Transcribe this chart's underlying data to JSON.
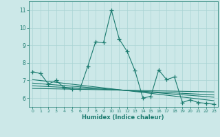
{
  "xlabel": "Humidex (Indice chaleur)",
  "bg_color": "#cce8e8",
  "line_color": "#1a7a6e",
  "xlim": [
    -0.5,
    23.5
  ],
  "ylim": [
    5.5,
    11.5
  ],
  "yticks": [
    6,
    7,
    8,
    9,
    10,
    11
  ],
  "xticks": [
    0,
    1,
    2,
    3,
    4,
    5,
    6,
    7,
    8,
    9,
    10,
    11,
    12,
    13,
    14,
    15,
    16,
    17,
    18,
    19,
    20,
    21,
    22,
    23
  ],
  "main_line_x": [
    0,
    1,
    2,
    3,
    4,
    5,
    6,
    7,
    8,
    9,
    10,
    11,
    12,
    13,
    14,
    15,
    16,
    17,
    18,
    19,
    20,
    21,
    22,
    23
  ],
  "main_line_y": [
    7.5,
    7.4,
    6.8,
    7.0,
    6.6,
    6.5,
    6.5,
    7.8,
    9.2,
    9.15,
    11.0,
    9.35,
    8.65,
    7.55,
    6.0,
    6.1,
    7.6,
    7.05,
    7.2,
    5.75,
    5.9,
    5.75,
    5.7,
    5.65
  ],
  "reg_lines": [
    {
      "x": [
        0,
        23
      ],
      "y": [
        7.05,
        5.85
      ]
    },
    {
      "x": [
        0,
        23
      ],
      "y": [
        6.85,
        6.05
      ]
    },
    {
      "x": [
        0,
        23
      ],
      "y": [
        6.7,
        6.18
      ]
    },
    {
      "x": [
        0,
        23
      ],
      "y": [
        6.55,
        6.35
      ]
    }
  ],
  "grid_color": "#aad4d4",
  "marker": "+",
  "markersize": 4,
  "linewidth": 0.8
}
